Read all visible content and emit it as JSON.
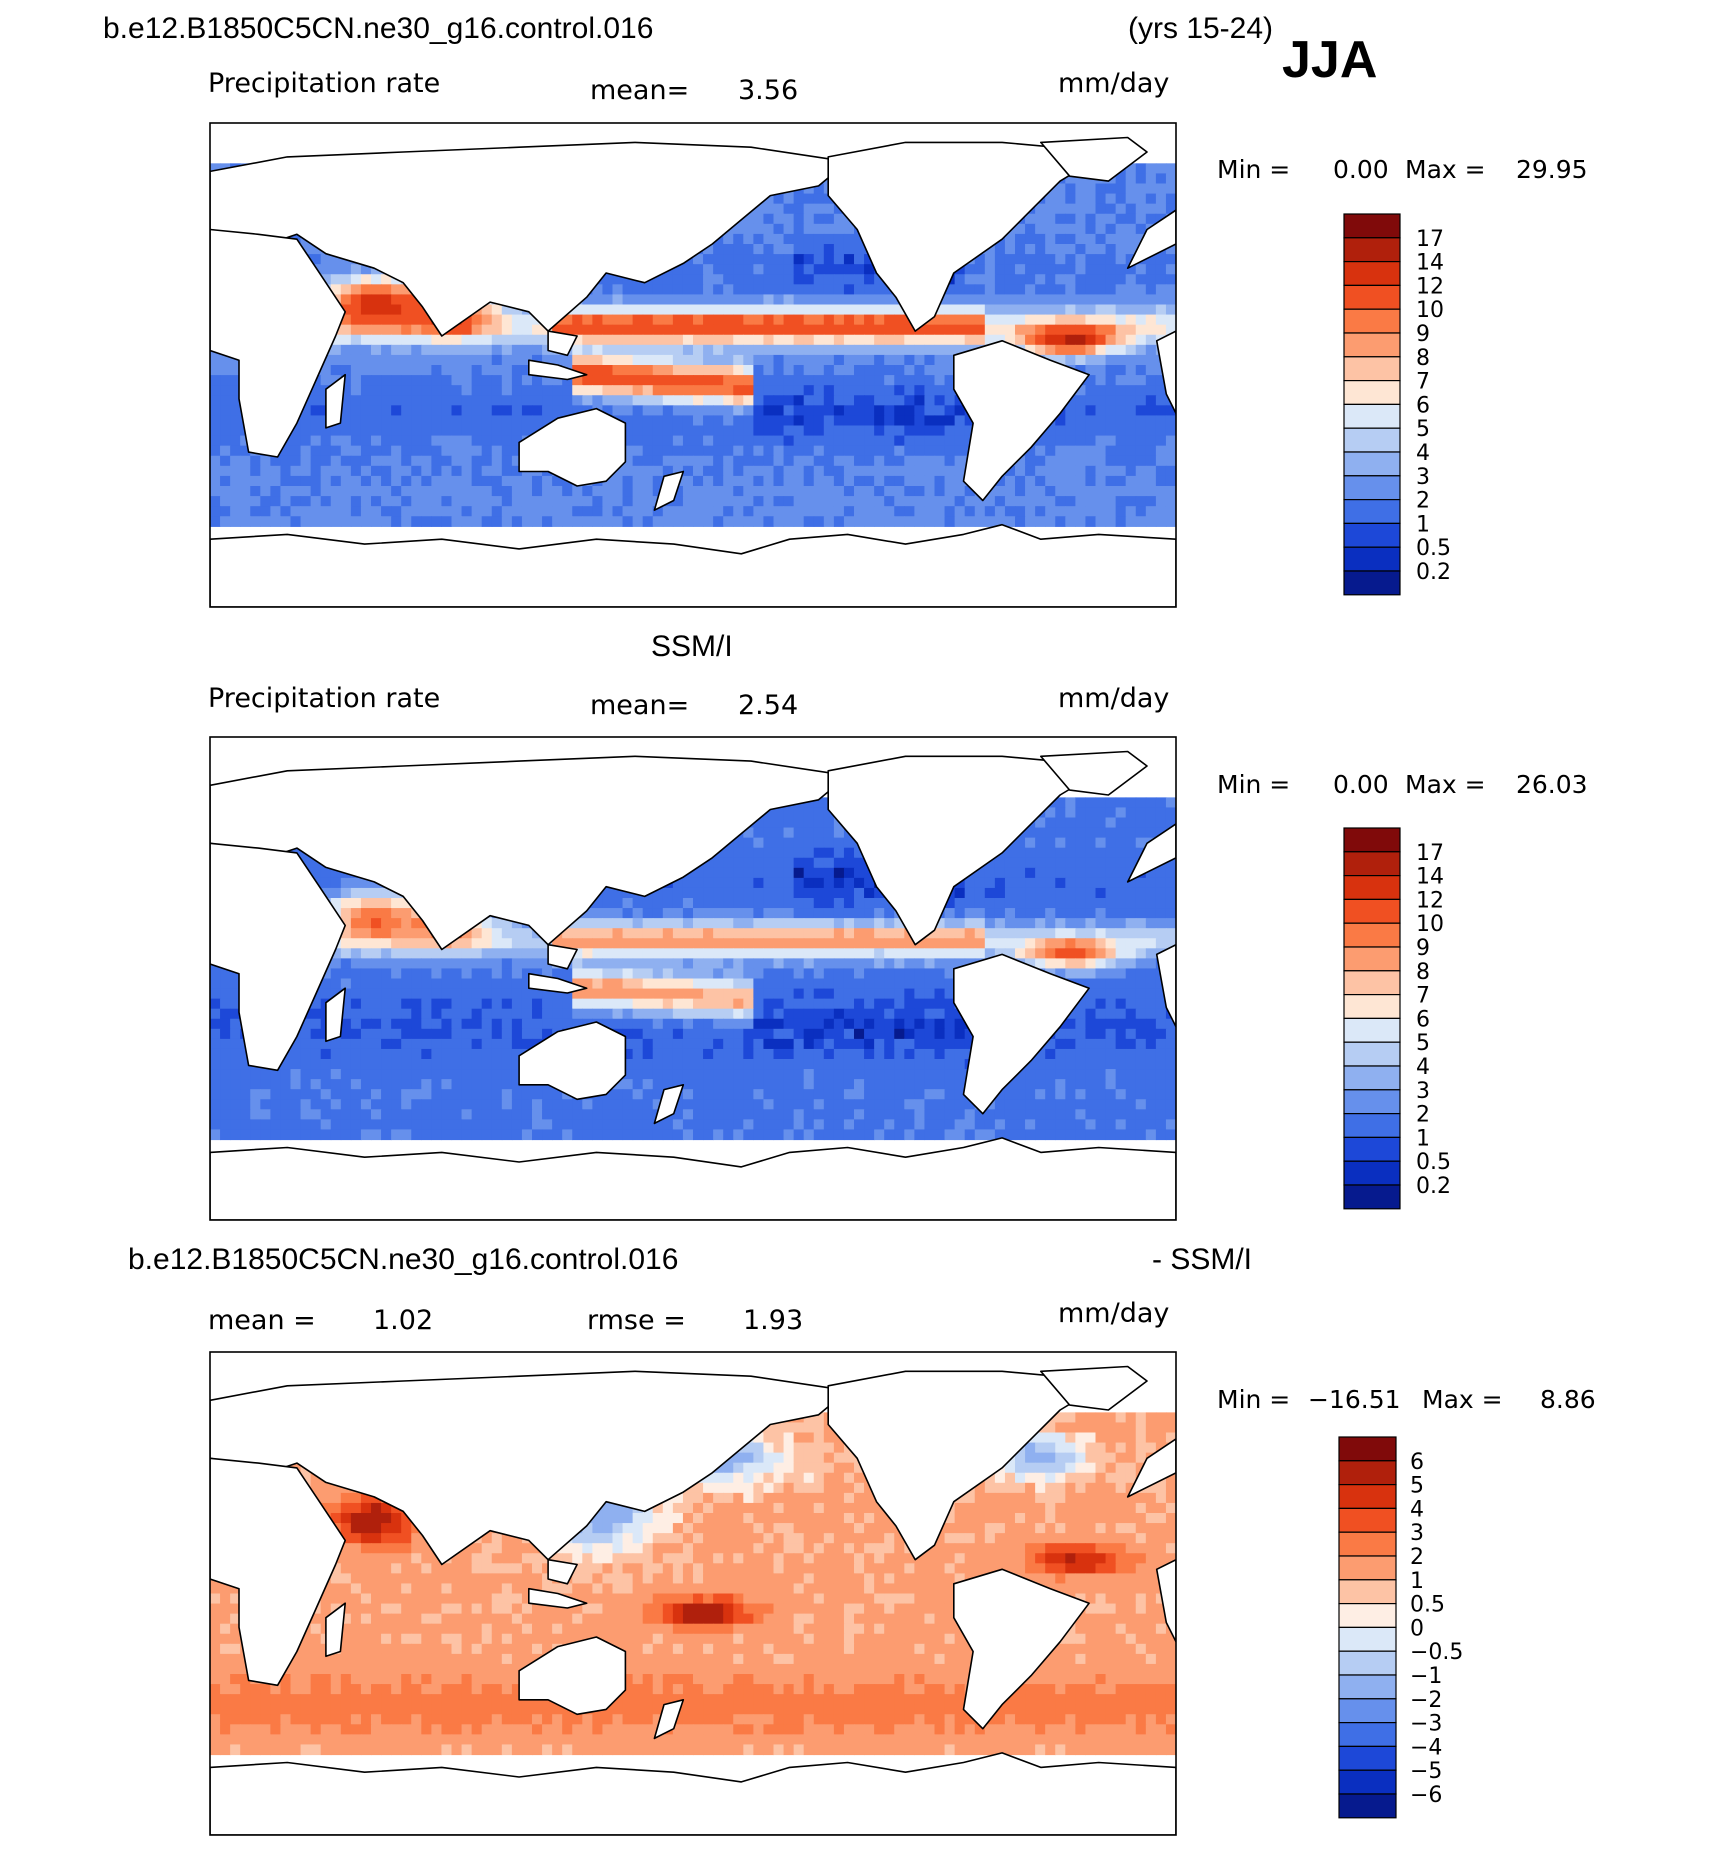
{
  "header": {
    "case_name": "b.e12.B1850C5CN.ne30_g16.control.016",
    "years": "(yrs 15-24)",
    "season": "JJA"
  },
  "panels": [
    {
      "title": "",
      "variable": "Precipitation rate",
      "mean_label": "mean=",
      "mean_value": "3.56",
      "units": "mm/day",
      "min_label": "Min =",
      "min_value": "0.00",
      "max_label": "Max =",
      "max_value": "29.95",
      "colorbar_labels": [
        "17",
        "14",
        "12",
        "10",
        "9",
        "8",
        "7",
        "6",
        "5",
        "4",
        "3",
        "2",
        "1",
        "0.5",
        "0.2"
      ]
    },
    {
      "title": "SSM/I",
      "variable": "Precipitation rate",
      "mean_label": "mean=",
      "mean_value": "2.54",
      "units": "mm/day",
      "min_label": "Min =",
      "min_value": "0.00",
      "max_label": "Max =",
      "max_value": "26.03",
      "colorbar_labels": [
        "17",
        "14",
        "12",
        "10",
        "9",
        "8",
        "7",
        "6",
        "5",
        "4",
        "3",
        "2",
        "1",
        "0.5",
        "0.2"
      ]
    },
    {
      "title_left": "b.e12.B1850C5CN.ne30_g16.control.016",
      "title_right": "- SSM/I",
      "mean_label": "mean =",
      "mean_value": "1.02",
      "rmse_label": "rmse =",
      "rmse_value": "1.93",
      "units": "mm/day",
      "min_label": "Min =",
      "min_value": "−16.51",
      "max_label": "Max =",
      "max_value": "8.86",
      "colorbar_labels": [
        "6",
        "5",
        "4",
        "3",
        "2",
        "1",
        "0.5",
        "0",
        "−0.5",
        "−1",
        "−2",
        "−3",
        "−4",
        "−5",
        "−6"
      ]
    }
  ],
  "colors": {
    "precip_scale": [
      "#800a0a",
      "#b0200c",
      "#d8320e",
      "#f05022",
      "#fa7a45",
      "#fc9c70",
      "#fdc3a5",
      "#fee6d4",
      "#dbe8f8",
      "#b6cdf3",
      "#8fb0f0",
      "#6690ec",
      "#3f6fe6",
      "#1d48d8",
      "#0a2fc0",
      "#061a8e"
    ],
    "diff_scale": [
      "#800a0a",
      "#b0200c",
      "#d8320e",
      "#f05022",
      "#fa7a45",
      "#fc9c70",
      "#fdc3a5",
      "#feeee4",
      "#dbe8f8",
      "#b6cdf3",
      "#8fb0f0",
      "#6690ec",
      "#3f6fe6",
      "#1d48d8",
      "#0a2fc0",
      "#061a8e"
    ]
  },
  "chart_data": [
    {
      "type": "heatmap",
      "title": "Precipitation rate",
      "units": "mm/day",
      "mean": 3.56,
      "min": 0.0,
      "max": 29.95,
      "levels": [
        0.2,
        0.5,
        1,
        2,
        3,
        4,
        5,
        6,
        7,
        8,
        9,
        10,
        12,
        14,
        17
      ]
    },
    {
      "type": "heatmap",
      "title": "SSM/I Precipitation rate",
      "units": "mm/day",
      "mean": 2.54,
      "min": 0.0,
      "max": 26.03,
      "levels": [
        0.2,
        0.5,
        1,
        2,
        3,
        4,
        5,
        6,
        7,
        8,
        9,
        10,
        12,
        14,
        17
      ]
    },
    {
      "type": "heatmap",
      "title": "b.e12.B1850C5CN.ne30_g16.control.016 - SSM/I",
      "units": "mm/day",
      "mean": 1.02,
      "rmse": 1.93,
      "min": -16.51,
      "max": 8.86,
      "levels": [
        -6,
        -5,
        -4,
        -3,
        -2,
        -1,
        -0.5,
        0,
        0.5,
        1,
        2,
        3,
        4,
        5,
        6
      ]
    }
  ]
}
